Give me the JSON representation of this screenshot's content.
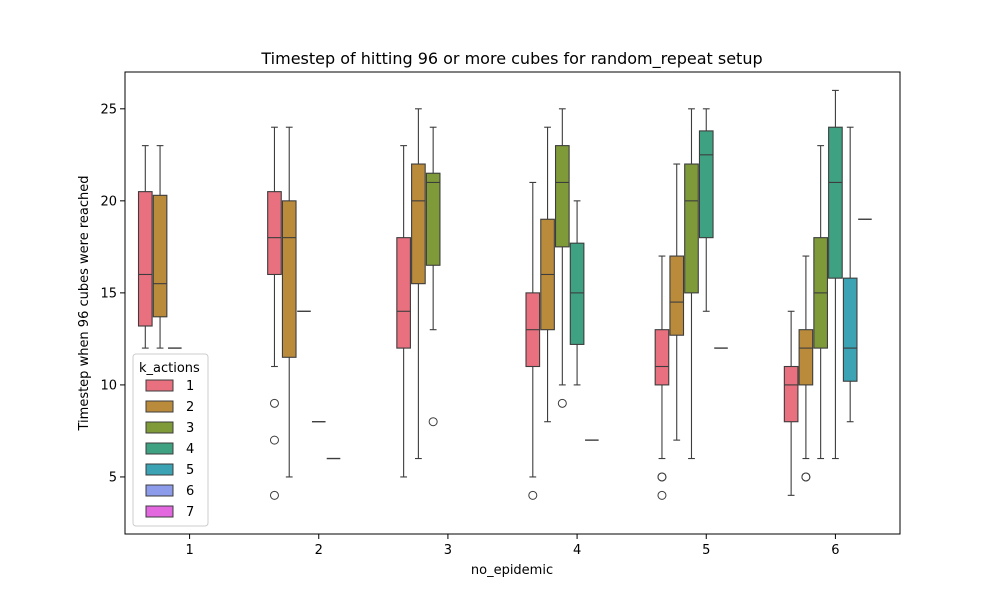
{
  "chart_data": {
    "type": "boxplot",
    "title": "Timestep of hitting 96 or more cubes for random_repeat setup",
    "xlabel": "no_epidemic",
    "ylabel": "Timestep when 96 cubes were reached",
    "categories": [
      "1",
      "2",
      "3",
      "4",
      "5",
      "6"
    ],
    "ylim": [
      1.9,
      27.0
    ],
    "yticks": [
      5,
      10,
      15,
      20,
      25
    ],
    "grid": false,
    "legend": {
      "title": "k_actions",
      "placement": "lower-left",
      "entries": [
        "1",
        "2",
        "3",
        "4",
        "5",
        "6",
        "7"
      ]
    },
    "series": [
      {
        "name": "1",
        "color": "#e8707f",
        "boxes": [
          {
            "category": "1",
            "whislo": 12,
            "q1": 13.2,
            "median": 16,
            "q3": 20.5,
            "whishi": 23,
            "fliers": []
          },
          {
            "category": "2",
            "whislo": 11,
            "q1": 16,
            "median": 18,
            "q3": 20.5,
            "whishi": 24,
            "fliers": [
              9,
              7,
              4
            ]
          },
          {
            "category": "3",
            "whislo": 5,
            "q1": 12,
            "median": 14,
            "q3": 18,
            "whishi": 23,
            "fliers": []
          },
          {
            "category": "4",
            "whislo": 5,
            "q1": 11,
            "median": 13,
            "q3": 15,
            "whishi": 21,
            "fliers": [
              4
            ]
          },
          {
            "category": "5",
            "whislo": 6,
            "q1": 10,
            "median": 11,
            "q3": 13,
            "whishi": 17,
            "fliers": [
              5,
              5,
              4
            ]
          },
          {
            "category": "6",
            "whislo": 4,
            "q1": 8,
            "median": 10,
            "q3": 11,
            "whishi": 14,
            "fliers": []
          }
        ]
      },
      {
        "name": "2",
        "color": "#bb8b3c",
        "boxes": [
          {
            "category": "1",
            "whislo": 12,
            "q1": 13.7,
            "median": 15.5,
            "q3": 20.3,
            "whishi": 23,
            "fliers": []
          },
          {
            "category": "2",
            "whislo": 5,
            "q1": 11.5,
            "median": 18,
            "q3": 20,
            "whishi": 24,
            "fliers": []
          },
          {
            "category": "3",
            "whislo": 6,
            "q1": 15.5,
            "median": 20,
            "q3": 22,
            "whishi": 25,
            "fliers": []
          },
          {
            "category": "4",
            "whislo": 8,
            "q1": 13,
            "median": 16,
            "q3": 19,
            "whishi": 24,
            "fliers": []
          },
          {
            "category": "5",
            "whislo": 7,
            "q1": 12.7,
            "median": 14.5,
            "q3": 17,
            "whishi": 22,
            "fliers": []
          },
          {
            "category": "6",
            "whislo": 6,
            "q1": 10,
            "median": 12,
            "q3": 13,
            "whishi": 17,
            "fliers": [
              5,
              5
            ]
          }
        ]
      },
      {
        "name": "3",
        "color": "#7f9a38",
        "boxes": [
          {
            "category": "1",
            "whislo": 12,
            "q1": 12,
            "median": 12,
            "q3": 12,
            "whishi": 12,
            "fliers": []
          },
          {
            "category": "2",
            "whislo": 14,
            "q1": 14,
            "median": 14,
            "q3": 14,
            "whishi": 14,
            "fliers": []
          },
          {
            "category": "3",
            "whislo": 13,
            "q1": 16.5,
            "median": 21,
            "q3": 21.5,
            "whishi": 24,
            "fliers": [
              8
            ]
          },
          {
            "category": "4",
            "whislo": 10,
            "q1": 17.5,
            "median": 21,
            "q3": 23,
            "whishi": 25,
            "fliers": [
              9
            ]
          },
          {
            "category": "5",
            "whislo": 6,
            "q1": 15,
            "median": 20,
            "q3": 22,
            "whishi": 25,
            "fliers": []
          },
          {
            "category": "6",
            "whislo": 6,
            "q1": 12,
            "median": 15,
            "q3": 18,
            "whishi": 23,
            "fliers": []
          }
        ]
      },
      {
        "name": "4",
        "color": "#3ea282",
        "boxes": [
          {
            "category": "2",
            "whislo": 8,
            "q1": 8,
            "median": 8,
            "q3": 8,
            "whishi": 8,
            "fliers": []
          },
          {
            "category": "4",
            "whislo": 10,
            "q1": 12.2,
            "median": 15,
            "q3": 17.7,
            "whishi": 20,
            "fliers": []
          },
          {
            "category": "5",
            "whislo": 14,
            "q1": 18,
            "median": 22.5,
            "q3": 23.8,
            "whishi": 25,
            "fliers": []
          },
          {
            "category": "6",
            "whislo": 6,
            "q1": 15.8,
            "median": 21,
            "q3": 24,
            "whishi": 26,
            "fliers": []
          }
        ]
      },
      {
        "name": "5",
        "color": "#3ba3b3",
        "boxes": [
          {
            "category": "2",
            "whislo": 6,
            "q1": 6,
            "median": 6,
            "q3": 6,
            "whishi": 6,
            "fliers": []
          },
          {
            "category": "4",
            "whislo": 7,
            "q1": 7,
            "median": 7,
            "q3": 7,
            "whishi": 7,
            "fliers": []
          },
          {
            "category": "5",
            "whislo": 12,
            "q1": 12,
            "median": 12,
            "q3": 12,
            "whishi": 12,
            "fliers": []
          },
          {
            "category": "6",
            "whislo": 8,
            "q1": 10.2,
            "median": 12,
            "q3": 15.8,
            "whishi": 24,
            "fliers": []
          }
        ]
      },
      {
        "name": "6",
        "color": "#8c9bea",
        "boxes": [
          {
            "category": "6",
            "whislo": 19,
            "q1": 19,
            "median": 19,
            "q3": 19,
            "whishi": 19,
            "fliers": []
          }
        ]
      },
      {
        "name": "7",
        "color": "#e368e0",
        "boxes": []
      }
    ]
  }
}
